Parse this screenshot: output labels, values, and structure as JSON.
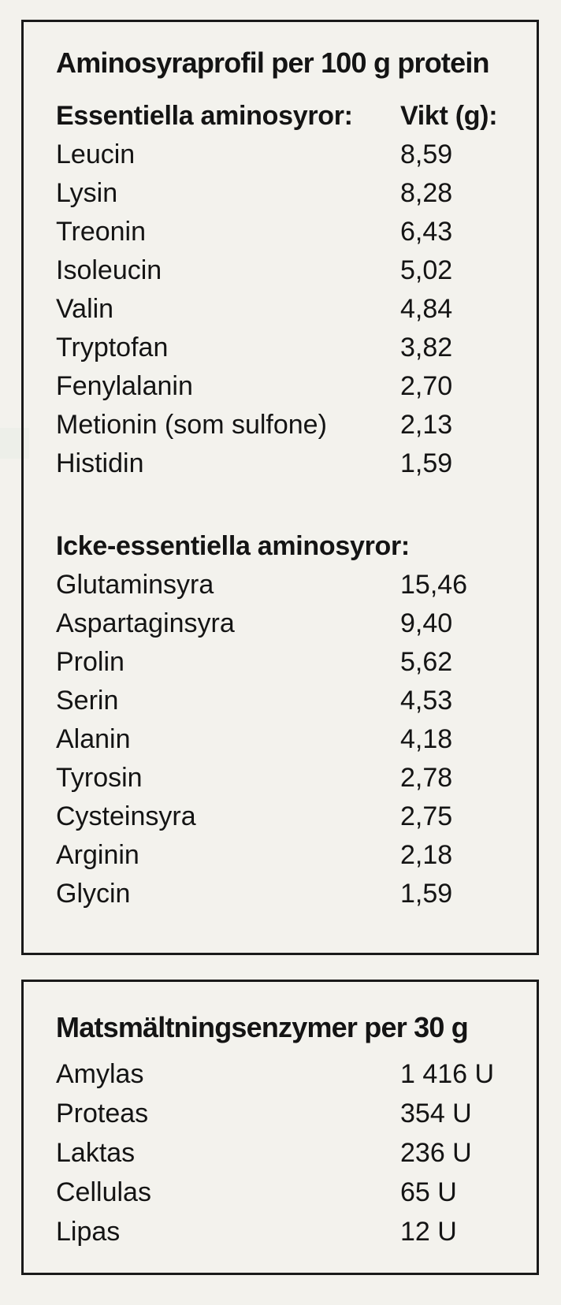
{
  "page": {
    "background_color": "#f3f2ed",
    "text_color": "#141414",
    "border_color": "#1a1a1a"
  },
  "amino_panel": {
    "title": "Aminosyraprofil per 100 g protein",
    "essential": {
      "header_label": "Essentiella aminosyror:",
      "header_value": "Vikt (g):",
      "rows": [
        {
          "label": "Leucin",
          "value": "8,59"
        },
        {
          "label": "Lysin",
          "value": "8,28"
        },
        {
          "label": "Treonin",
          "value": "6,43"
        },
        {
          "label": "Isoleucin",
          "value": "5,02"
        },
        {
          "label": "Valin",
          "value": "4,84"
        },
        {
          "label": "Tryptofan",
          "value": "3,82"
        },
        {
          "label": "Fenylalanin",
          "value": "2,70"
        },
        {
          "label": "Metionin (som sulfone)",
          "value": "2,13"
        },
        {
          "label": "Histidin",
          "value": "1,59"
        }
      ]
    },
    "non_essential": {
      "header_label": "Icke-essentiella aminosyror:",
      "rows": [
        {
          "label": "Glutaminsyra",
          "value": "15,46"
        },
        {
          "label": "Aspartaginsyra",
          "value": "9,40"
        },
        {
          "label": "Prolin",
          "value": "5,62"
        },
        {
          "label": "Serin",
          "value": "4,53"
        },
        {
          "label": "Alanin",
          "value": "4,18"
        },
        {
          "label": "Tyrosin",
          "value": "2,78"
        },
        {
          "label": "Cysteinsyra",
          "value": "2,75"
        },
        {
          "label": "Arginin",
          "value": "2,18"
        },
        {
          "label": "Glycin",
          "value": "1,59"
        }
      ]
    }
  },
  "enzyme_panel": {
    "title": "Matsmältningsenzymer per 30 g",
    "rows": [
      {
        "label": "Amylas",
        "value": "1 416 U"
      },
      {
        "label": "Proteas",
        "value": "354 U"
      },
      {
        "label": "Laktas",
        "value": "236 U"
      },
      {
        "label": "Cellulas",
        "value": "65 U"
      },
      {
        "label": "Lipas",
        "value": "12 U"
      }
    ]
  }
}
